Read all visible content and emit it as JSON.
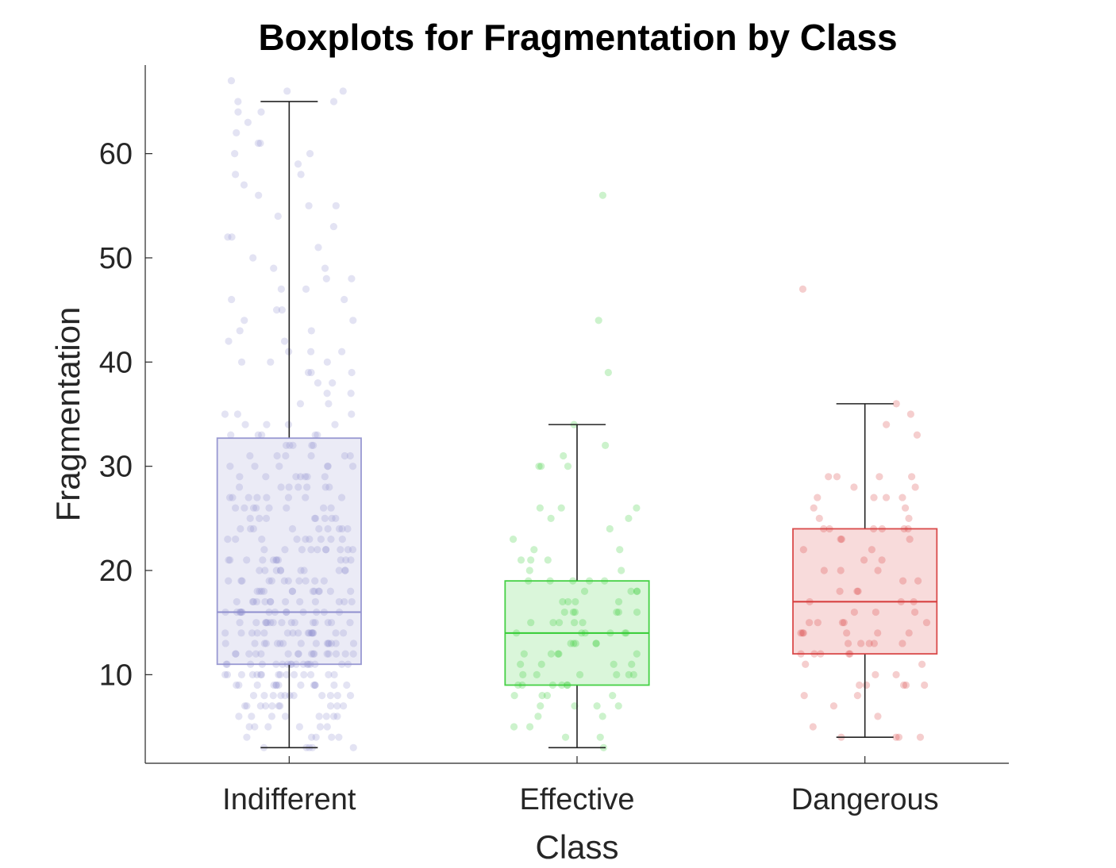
{
  "chart_data": {
    "type": "boxplot",
    "title": "Boxplots for Fragmentation by Class",
    "xlabel": "Class",
    "ylabel": "Fragmentation",
    "ylim": [
      1.5,
      68.5
    ],
    "yticks": [
      10,
      20,
      30,
      40,
      50,
      60
    ],
    "grid": false,
    "categories": [
      "Indifferent",
      "Effective",
      "Dangerous"
    ],
    "boxes": [
      {
        "category": "Indifferent",
        "color": "#8f8fce",
        "whisker_low": 3,
        "q1": 11,
        "median": 16,
        "q3": 32.7,
        "whisker_high": 65,
        "points": [
          3,
          3,
          3,
          3,
          3,
          4,
          4,
          4,
          4,
          4,
          5,
          5,
          5,
          5,
          5,
          5,
          6,
          6,
          6,
          6,
          6,
          6,
          6,
          6,
          7,
          7,
          7,
          7,
          7,
          7,
          7,
          7,
          7,
          7,
          8,
          8,
          8,
          8,
          8,
          8,
          8,
          8,
          8,
          8,
          8,
          9,
          9,
          9,
          9,
          9,
          9,
          9,
          9,
          9,
          9,
          9,
          9,
          9,
          10,
          10,
          10,
          10,
          10,
          10,
          10,
          10,
          10,
          10,
          10,
          10,
          10,
          10,
          10,
          11,
          11,
          11,
          11,
          11,
          11,
          11,
          11,
          11,
          11,
          11,
          11,
          11,
          11,
          11,
          11,
          11,
          12,
          12,
          12,
          12,
          12,
          12,
          12,
          12,
          12,
          12,
          12,
          12,
          12,
          12,
          12,
          12,
          13,
          13,
          13,
          13,
          13,
          13,
          13,
          13,
          13,
          13,
          13,
          13,
          13,
          13,
          13,
          14,
          14,
          14,
          14,
          14,
          14,
          14,
          14,
          14,
          14,
          14,
          14,
          14,
          14,
          14,
          14,
          15,
          15,
          15,
          15,
          15,
          15,
          15,
          15,
          15,
          15,
          15,
          15,
          15,
          15,
          15,
          16,
          16,
          16,
          16,
          16,
          16,
          16,
          16,
          16,
          16,
          16,
          16,
          16,
          16,
          17,
          17,
          17,
          17,
          17,
          17,
          17,
          17,
          17,
          17,
          17,
          17,
          17,
          18,
          18,
          18,
          18,
          18,
          18,
          18,
          18,
          18,
          18,
          18,
          18,
          19,
          19,
          19,
          19,
          19,
          19,
          19,
          19,
          19,
          19,
          19,
          20,
          20,
          20,
          20,
          20,
          20,
          20,
          20,
          20,
          20,
          21,
          21,
          21,
          21,
          21,
          21,
          21,
          21,
          21,
          21,
          21,
          22,
          22,
          22,
          22,
          22,
          22,
          22,
          22,
          22,
          22,
          23,
          23,
          23,
          23,
          23,
          23,
          23,
          23,
          23,
          24,
          24,
          24,
          24,
          24,
          24,
          24,
          24,
          24,
          25,
          25,
          25,
          25,
          25,
          25,
          25,
          25,
          26,
          26,
          26,
          26,
          26,
          26,
          26,
          26,
          27,
          27,
          27,
          27,
          27,
          27,
          27,
          27,
          28,
          28,
          28,
          28,
          28,
          28,
          28,
          29,
          29,
          29,
          29,
          29,
          29,
          29,
          30,
          30,
          30,
          30,
          30,
          30,
          31,
          31,
          31,
          31,
          31,
          31,
          32,
          32,
          32,
          32,
          32,
          33,
          33,
          33,
          33,
          33,
          34,
          34,
          34,
          34,
          35,
          35,
          35,
          36,
          36,
          37,
          37,
          38,
          38,
          39,
          39,
          39,
          40,
          40,
          40,
          41,
          41,
          41,
          42,
          42,
          43,
          43,
          44,
          44,
          45,
          45,
          46,
          46,
          47,
          47,
          48,
          48,
          49,
          49,
          50,
          51,
          52,
          52,
          53,
          54,
          55,
          55,
          56,
          57,
          58,
          58,
          59,
          60,
          60,
          61,
          61,
          62,
          63,
          64,
          64,
          65,
          65,
          66,
          66,
          67
        ]
      },
      {
        "category": "Effective",
        "color": "#33cc33",
        "whisker_low": 3,
        "q1": 9,
        "median": 14,
        "q3": 19,
        "whisker_high": 34,
        "points": [
          3,
          4,
          4,
          5,
          5,
          6,
          6,
          7,
          7,
          7,
          7,
          8,
          8,
          8,
          8,
          9,
          9,
          9,
          9,
          9,
          9,
          10,
          10,
          10,
          10,
          10,
          10,
          11,
          11,
          11,
          11,
          12,
          12,
          12,
          12,
          12,
          13,
          13,
          13,
          13,
          13,
          14,
          14,
          14,
          14,
          14,
          14,
          15,
          15,
          15,
          15,
          15,
          16,
          16,
          16,
          16,
          16,
          16,
          17,
          17,
          17,
          17,
          18,
          18,
          18,
          18,
          19,
          19,
          19,
          19,
          19,
          20,
          20,
          21,
          21,
          21,
          22,
          22,
          23,
          24,
          25,
          25,
          26,
          26,
          26,
          30,
          30,
          30,
          31,
          32,
          34,
          39,
          44,
          56
        ]
      },
      {
        "category": "Dangerous",
        "color": "#d63a3a",
        "whisker_low": 4,
        "q1": 12,
        "median": 17,
        "q3": 24,
        "whisker_high": 36,
        "points": [
          4,
          4,
          4,
          4,
          5,
          6,
          7,
          8,
          8,
          9,
          9,
          9,
          9,
          9,
          10,
          10,
          11,
          11,
          12,
          12,
          12,
          12,
          12,
          13,
          13,
          13,
          13,
          13,
          14,
          14,
          14,
          14,
          14,
          14,
          15,
          15,
          15,
          15,
          15,
          16,
          16,
          16,
          17,
          17,
          17,
          18,
          18,
          18,
          19,
          19,
          20,
          20,
          20,
          21,
          21,
          22,
          22,
          23,
          23,
          23,
          24,
          24,
          24,
          24,
          24,
          24,
          25,
          25,
          26,
          26,
          27,
          27,
          27,
          27,
          28,
          28,
          29,
          29,
          29,
          29,
          33,
          34,
          35,
          36,
          47
        ]
      }
    ]
  }
}
